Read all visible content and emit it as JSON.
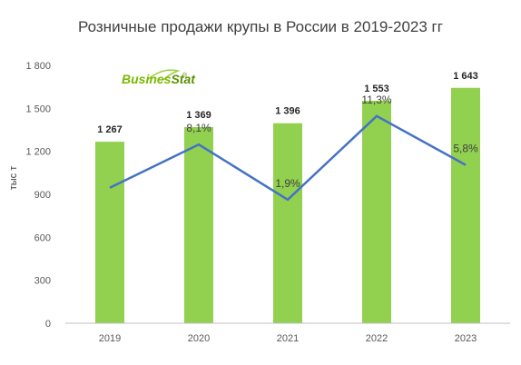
{
  "title": "Розничные продажи крупы в России в 2019-2023 гг",
  "ylabel": "тыс т",
  "logo": {
    "part1": "Busines",
    "part2": "Stat",
    "mark": "®",
    "color1": "#7ab800",
    "color2": "#5a8f00"
  },
  "colors": {
    "bar": "#92d050",
    "line": "#4472c4",
    "axis": "#bfbfbf"
  },
  "chart_data": {
    "type": "bar",
    "categories": [
      "2019",
      "2020",
      "2021",
      "2022",
      "2023"
    ],
    "values": [
      1267,
      1369,
      1396,
      1553,
      1643
    ],
    "value_labels": [
      "1 267",
      "1 369",
      "1 396",
      "1 553",
      "1 643"
    ],
    "ylim": [
      0,
      1800
    ],
    "yticks": [
      0,
      300,
      600,
      900,
      1200,
      1500,
      1800
    ],
    "ytick_labels": [
      "0",
      "300",
      "600",
      "900",
      "1 200",
      "1 500",
      "1 800"
    ],
    "growth_line": {
      "values": [
        null,
        8.1,
        1.9,
        11.3,
        5.8
      ],
      "labels": [
        "",
        "8,1%",
        "1,9%",
        "11,3%",
        "5,8%"
      ]
    },
    "grid": false,
    "legend": "none"
  }
}
